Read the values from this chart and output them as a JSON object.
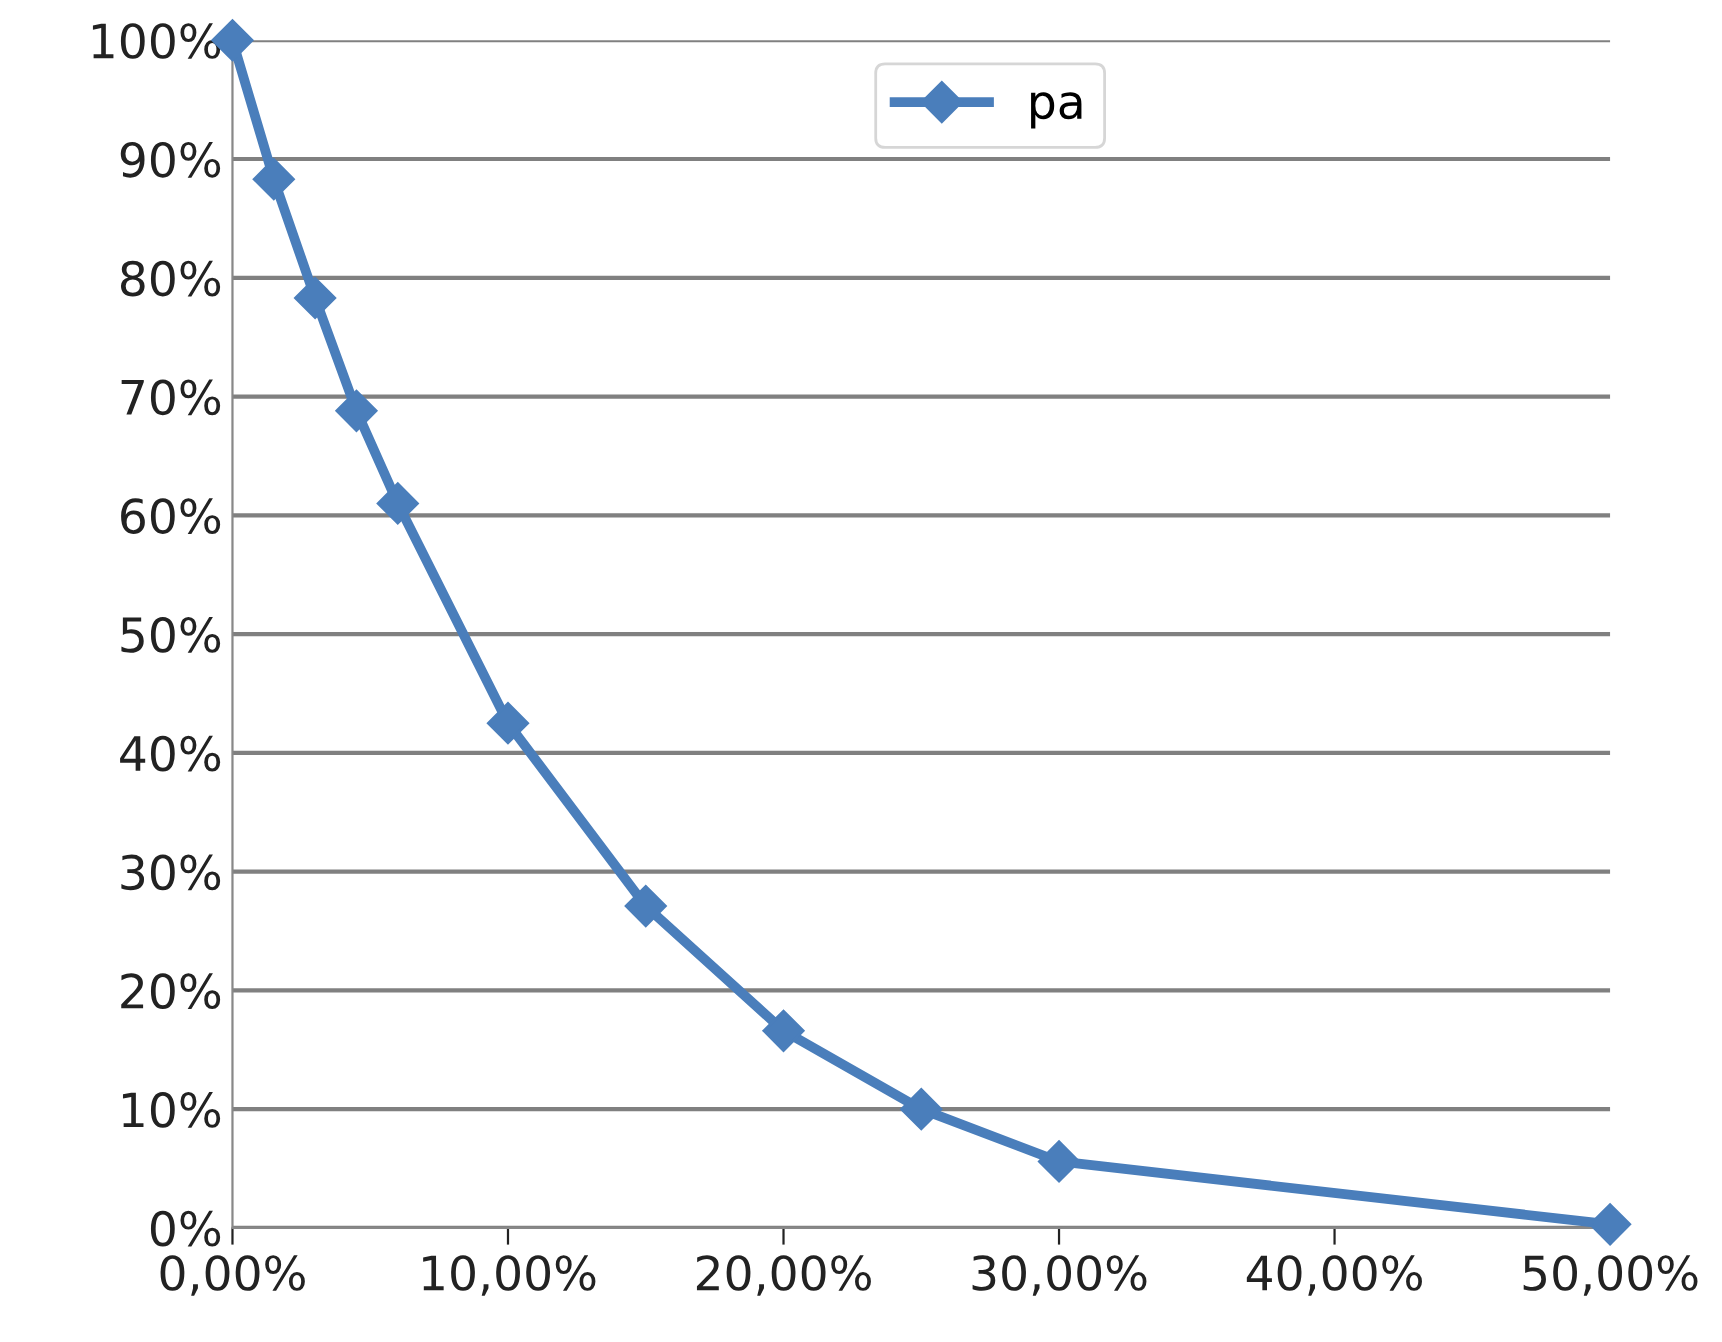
{
  "chart_data": {
    "type": "line",
    "x": [
      0,
      1.5,
      3,
      4.5,
      6,
      10,
      15,
      20,
      25,
      30,
      50
    ],
    "series": [
      {
        "name": "pa",
        "color": "#4a7ebb",
        "values": [
          100,
          88.3,
          78.3,
          68.8,
          61,
          42.5,
          27.1,
          16.6,
          10,
          5.6,
          0.3
        ]
      }
    ],
    "xlim": [
      0,
      50
    ],
    "ylim": [
      0,
      100
    ],
    "xticks": [
      {
        "value": 0,
        "label": "0,00%"
      },
      {
        "value": 10,
        "label": "10,00%"
      },
      {
        "value": 20,
        "label": "20,00%"
      },
      {
        "value": 30,
        "label": "30,00%"
      },
      {
        "value": 40,
        "label": "40,00%"
      },
      {
        "value": 50,
        "label": "50,00%"
      }
    ],
    "yticks": [
      {
        "value": 0,
        "label": "0%"
      },
      {
        "value": 10,
        "label": "10%"
      },
      {
        "value": 20,
        "label": "20%"
      },
      {
        "value": 30,
        "label": "30%"
      },
      {
        "value": 40,
        "label": "40%"
      },
      {
        "value": 50,
        "label": "50%"
      },
      {
        "value": 60,
        "label": "60%"
      },
      {
        "value": 70,
        "label": "70%"
      },
      {
        "value": 80,
        "label": "80%"
      },
      {
        "value": 90,
        "label": "90%"
      },
      {
        "value": 100,
        "label": "100%"
      }
    ],
    "grid": "y",
    "legend": "top",
    "marker": "diamond",
    "line_style": "solid"
  }
}
